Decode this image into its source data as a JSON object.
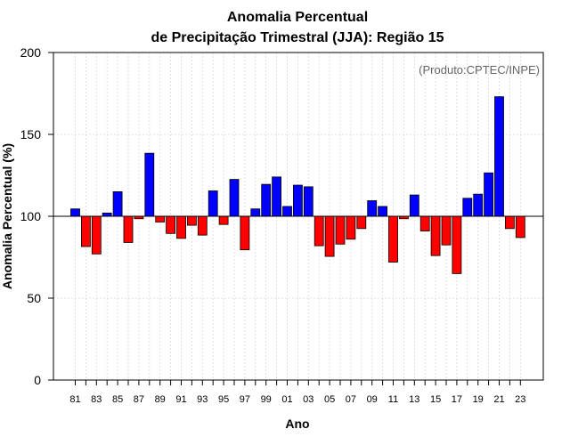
{
  "chart_data": {
    "type": "bar",
    "title_line1": "Anomalia Percentual",
    "title_line2": "de Precipitação Trimestral (JJA): Região 15",
    "xlabel": "Ano",
    "ylabel": "Anomalia Percentual (%)",
    "source": "(Produto:CPTEC/INPE)",
    "baseline": 100,
    "ylim": [
      0,
      200
    ],
    "yticks": [
      0,
      50,
      100,
      150,
      200
    ],
    "grid": true,
    "colors": {
      "above": "#0000ff",
      "below": "#ff0000",
      "frame": "#000000",
      "grid": "#d8d8d8"
    },
    "categories": [
      "81",
      "82",
      "83",
      "84",
      "85",
      "86",
      "87",
      "88",
      "89",
      "90",
      "91",
      "92",
      "93",
      "94",
      "95",
      "96",
      "97",
      "98",
      "99",
      "00",
      "01",
      "02",
      "03",
      "04",
      "05",
      "06",
      "07",
      "08",
      "09",
      "10",
      "11",
      "12",
      "13",
      "14",
      "15",
      "16",
      "17",
      "18",
      "19",
      "20",
      "21",
      "22",
      "23"
    ],
    "xtick_labels": [
      "81",
      "83",
      "85",
      "87",
      "89",
      "91",
      "93",
      "95",
      "97",
      "99",
      "01",
      "03",
      "05",
      "07",
      "09",
      "11",
      "13",
      "15",
      "17",
      "19",
      "21",
      "23"
    ],
    "values": [
      104.5,
      81.5,
      77,
      102,
      115,
      84,
      98.5,
      138.5,
      96.5,
      89.5,
      86.5,
      94.5,
      88.5,
      115.5,
      95,
      122.5,
      79.5,
      104.5,
      119.5,
      124,
      106,
      119,
      118,
      82,
      75.5,
      83,
      86,
      92.5,
      109.5,
      106,
      72,
      98.5,
      113,
      91,
      76,
      82.5,
      65,
      111,
      113.5,
      126.5,
      173,
      92.5,
      87
    ]
  }
}
